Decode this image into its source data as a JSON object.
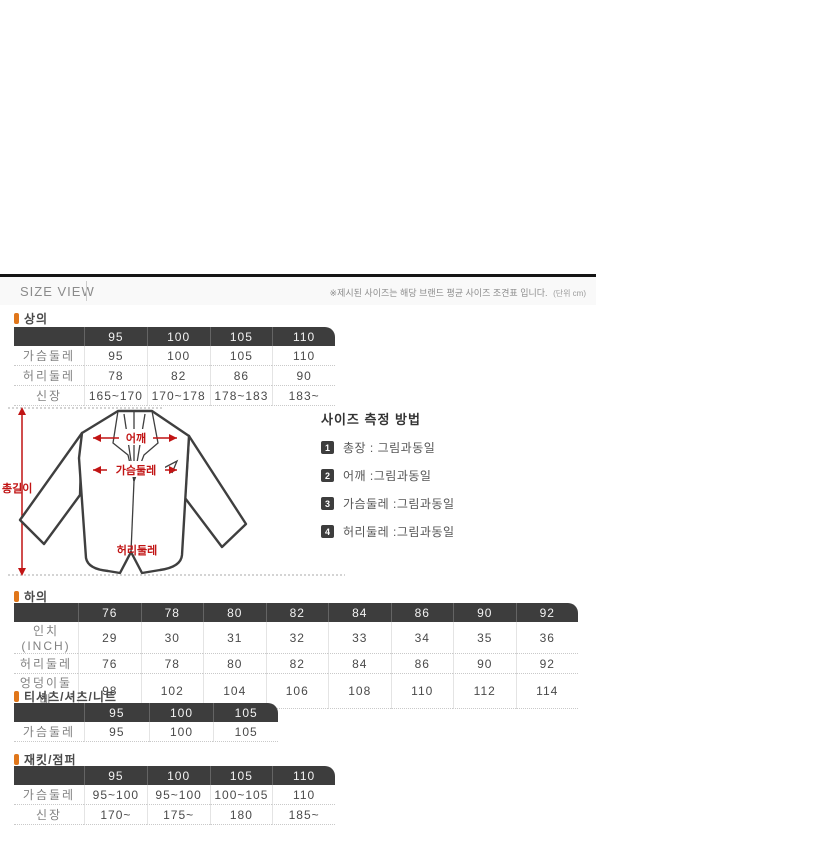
{
  "header": {
    "title": "SIZE VIEW",
    "notice": "※제시된 사이즈는 해당 브랜드 평균 사이즈 조견표 입니다.",
    "unit": "(단위 cm)"
  },
  "colors": {
    "accent_orange": "#e0761a",
    "table_header_bg": "#3d3d3d",
    "arrow_red": "#c11414",
    "jacket_outline": "#3f3f3f"
  },
  "tables": [
    {
      "id": "tops",
      "title": "상의",
      "col_labels": [
        "95",
        "100",
        "105",
        "110"
      ],
      "rows": [
        {
          "label": "가슴둘레",
          "values": [
            "95",
            "100",
            "105",
            "110"
          ]
        },
        {
          "label": "허리둘레",
          "values": [
            "78",
            "82",
            "86",
            "90"
          ]
        },
        {
          "label": "신장",
          "values": [
            "165~170",
            "170~178",
            "178~183",
            "183~"
          ]
        }
      ]
    },
    {
      "id": "bottoms",
      "title": "하의",
      "col_labels": [
        "76",
        "78",
        "80",
        "82",
        "84",
        "86",
        "90",
        "92"
      ],
      "rows": [
        {
          "label": "인치(INCH)",
          "values": [
            "29",
            "30",
            "31",
            "32",
            "33",
            "34",
            "35",
            "36"
          ]
        },
        {
          "label": "허리둘레",
          "values": [
            "76",
            "78",
            "80",
            "82",
            "84",
            "86",
            "90",
            "92"
          ]
        },
        {
          "label": "엉덩이둘레",
          "values": [
            "98",
            "102",
            "104",
            "106",
            "108",
            "110",
            "112",
            "114"
          ]
        }
      ]
    },
    {
      "id": "tshirt",
      "title": "티셔츠/셔츠/니트",
      "col_labels": [
        "95",
        "100",
        "105"
      ],
      "rows": [
        {
          "label": "가슴둘레",
          "values": [
            "95",
            "100",
            "105"
          ]
        }
      ]
    },
    {
      "id": "jacket",
      "title": "재킷/점퍼",
      "col_labels": [
        "95",
        "100",
        "105",
        "110"
      ],
      "rows": [
        {
          "label": "가슴둘레",
          "values": [
            "95~100",
            "95~100",
            "100~105",
            "110"
          ]
        },
        {
          "label": "신장",
          "values": [
            "170~",
            "175~",
            "180",
            "185~"
          ]
        }
      ]
    }
  ],
  "diagram": {
    "total_length": "총길이",
    "shoulder": "어깨",
    "chest": "가슴둘레",
    "waist": "허리둘레"
  },
  "measure_guide": {
    "title": "사이즈 측정 방법",
    "items": [
      {
        "num": "1",
        "text": "총장 : 그림과동일"
      },
      {
        "num": "2",
        "text": "어깨 :그림과동일"
      },
      {
        "num": "3",
        "text": "가슴둘레 :그림과동일"
      },
      {
        "num": "4",
        "text": "허리둘레 :그림과동일"
      }
    ]
  }
}
